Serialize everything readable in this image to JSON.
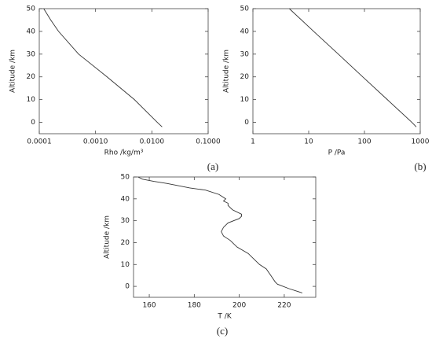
{
  "chart_data": [
    {
      "type": "line",
      "caption": "(a)",
      "xlabel": "Rho /kg/m³",
      "ylabel": "Altitude /km",
      "xscale": "log",
      "color": "#333333",
      "xlim": [
        0.0001,
        0.1
      ],
      "xticks": [
        0.0001,
        {
          "value": 0.001,
          "label": "0.0010"
        },
        {
          "value": 0.01,
          "label": "0.0100"
        },
        {
          "value": 0.1,
          "label": "0.1000"
        }
      ],
      "ylim": [
        -5,
        50
      ],
      "yticks": [
        0,
        10,
        20,
        30,
        40,
        50
      ],
      "x": [
        0.0152,
        0.0125,
        0.0049,
        0.0016,
        0.0005,
        0.00022,
        0.00016,
        0.00012
      ],
      "y": [
        -2,
        0,
        10,
        20,
        30,
        40,
        45,
        50
      ]
    },
    {
      "type": "line",
      "caption": "(b)",
      "xlabel": "P /Pa",
      "ylabel": "Altitude /km",
      "xscale": "log",
      "color": "#333333",
      "xlim": [
        1,
        1000
      ],
      "xticks": [
        1,
        10,
        100,
        1000
      ],
      "ylim": [
        -5,
        50
      ],
      "yticks": [
        0,
        10,
        20,
        30,
        40,
        50
      ],
      "x": [
        850,
        708,
        257,
        93,
        34,
        12.3,
        4.5
      ],
      "y": [
        -2,
        0,
        10,
        20,
        30,
        40,
        50
      ]
    },
    {
      "type": "line",
      "caption": "(c)",
      "xlabel": "T /K",
      "ylabel": "Altitude /km",
      "xscale": "linear",
      "color": "#333333",
      "xlim": [
        153,
        234
      ],
      "xticks": [
        160,
        180,
        200,
        220
      ],
      "ylim": [
        -5,
        50
      ],
      "yticks": [
        0,
        10,
        20,
        30,
        40,
        50
      ],
      "x": [
        228,
        222,
        217,
        216,
        214,
        212,
        209,
        206,
        204,
        199,
        196,
        193,
        192,
        193,
        195,
        200,
        201,
        201,
        197,
        195,
        195,
        193,
        194,
        191,
        185,
        178,
        168,
        162,
        157,
        155
      ],
      "y": [
        -3,
        -1,
        1,
        2,
        5,
        8,
        10,
        13,
        15,
        18,
        21,
        23,
        25,
        27,
        29,
        31,
        32,
        33,
        35,
        37,
        38,
        39,
        40,
        42,
        44,
        45,
        47,
        48,
        49,
        50
      ]
    }
  ]
}
